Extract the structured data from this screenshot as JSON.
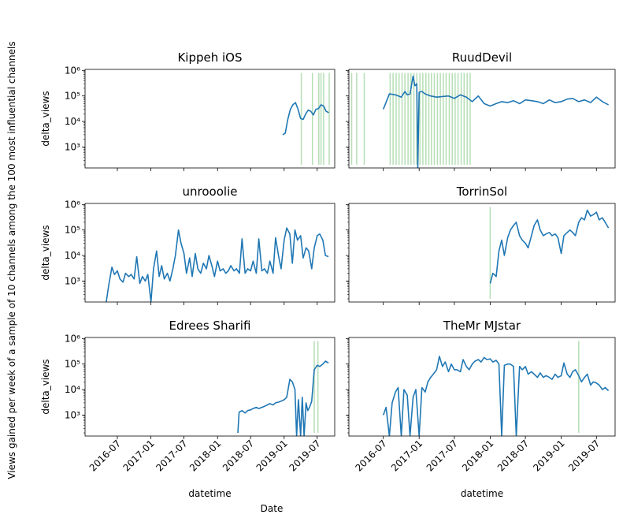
{
  "figure": {
    "ylabel": "Views gained per week of a sample of 10 channels among the 100 most influential channels",
    "xlabel": "Date"
  },
  "colors": {
    "line": "#1f77b4",
    "event": "#2ca02c"
  },
  "shared": {
    "type": "line",
    "ylog": true,
    "ylim": [
      150,
      1100000
    ],
    "xlim": [
      "2016-01-06",
      "2019-10-05"
    ],
    "xticks": [
      "2016-07-01",
      "2017-01-01",
      "2017-07-01",
      "2018-01-01",
      "2018-07-01",
      "2019-01-01",
      "2019-07-01"
    ],
    "xtick_labels": [
      "2016-07",
      "2017-01",
      "2017-07",
      "2018-01",
      "2018-07",
      "2019-01",
      "2019-07"
    ],
    "yticks": [
      1000,
      10000,
      100000,
      1000000
    ],
    "ytick_labels": [
      "10³",
      "10⁴",
      "10⁵",
      "10⁶"
    ],
    "subplot_ylabel": "delta_views",
    "subplot_xlabel": "datetime"
  },
  "chart_data": [
    {
      "type": "line",
      "title": "Kippeh iOS",
      "ylabel": "delta_views",
      "xlabel": "",
      "x": [
        "2018-12-24",
        "2019-01-07",
        "2019-01-21",
        "2019-02-04",
        "2019-02-18",
        "2019-03-04",
        "2019-03-18",
        "2019-04-01",
        "2019-04-15",
        "2019-04-29",
        "2019-05-13",
        "2019-05-27",
        "2019-06-10",
        "2019-06-24",
        "2019-07-08",
        "2019-07-22",
        "2019-08-05",
        "2019-08-19",
        "2019-09-02"
      ],
      "y": [
        3000,
        3500,
        12000,
        30000,
        45000,
        55000,
        30000,
        13000,
        12000,
        20000,
        28000,
        25000,
        18000,
        30000,
        32000,
        45000,
        40000,
        25000,
        22000
      ],
      "events": [
        "2019-04-05",
        "2019-06-05",
        "2019-07-10",
        "2019-07-22",
        "2019-08-05",
        "2019-09-05"
      ]
    },
    {
      "type": "line",
      "title": "RuudDevil",
      "ylabel": "",
      "xlabel": "",
      "x": [
        "2016-07-01",
        "2016-08-01",
        "2016-09-01",
        "2016-10-01",
        "2016-10-20",
        "2016-11-01",
        "2016-11-15",
        "2016-12-01",
        "2016-12-10",
        "2016-12-20",
        "2016-12-25",
        "2017-01-01",
        "2017-01-15",
        "2017-02-01",
        "2017-03-01",
        "2017-04-01",
        "2017-05-01",
        "2017-06-01",
        "2017-07-01",
        "2017-08-01",
        "2017-09-01",
        "2017-10-01",
        "2017-11-01",
        "2017-12-01",
        "2018-01-01",
        "2018-02-01",
        "2018-03-01",
        "2018-04-01",
        "2018-05-01",
        "2018-06-01",
        "2018-07-01",
        "2018-08-01",
        "2018-09-01",
        "2018-10-01",
        "2018-11-01",
        "2018-12-01",
        "2019-01-01",
        "2019-02-01",
        "2019-03-01",
        "2019-04-01",
        "2019-05-01",
        "2019-06-01",
        "2019-07-01",
        "2019-08-01",
        "2019-09-01"
      ],
      "y": [
        30000,
        120000,
        110000,
        90000,
        150000,
        110000,
        120000,
        600000,
        250000,
        300000,
        150,
        140000,
        150000,
        120000,
        100000,
        90000,
        95000,
        100000,
        80000,
        110000,
        90000,
        60000,
        100000,
        50000,
        40000,
        50000,
        60000,
        55000,
        65000,
        50000,
        70000,
        65000,
        60000,
        50000,
        70000,
        55000,
        60000,
        75000,
        80000,
        60000,
        70000,
        55000,
        90000,
        60000,
        45000
      ],
      "events": [
        "2016-01-20",
        "2016-02-15",
        "2016-03-25",
        "2016-08-05",
        "2016-08-20",
        "2016-09-05",
        "2016-09-20",
        "2016-10-05",
        "2016-10-20",
        "2016-11-05",
        "2016-11-20",
        "2016-12-05",
        "2016-12-20",
        "2017-01-05",
        "2017-01-20",
        "2017-02-05",
        "2017-02-20",
        "2017-03-05",
        "2017-03-20",
        "2017-04-05",
        "2017-04-20",
        "2017-05-05",
        "2017-05-20",
        "2017-06-05",
        "2017-06-20",
        "2017-07-05",
        "2017-07-20",
        "2017-08-05",
        "2017-08-20",
        "2017-09-05",
        "2017-09-20"
      ]
    },
    {
      "type": "line",
      "title": "unrooolie",
      "ylabel": "delta_views",
      "xlabel": "",
      "x": [
        "2016-05-01",
        "2016-05-15",
        "2016-06-01",
        "2016-06-15",
        "2016-07-01",
        "2016-07-15",
        "2016-08-01",
        "2016-08-15",
        "2016-09-01",
        "2016-09-15",
        "2016-10-01",
        "2016-10-15",
        "2016-11-01",
        "2016-11-15",
        "2016-12-01",
        "2016-12-15",
        "2017-01-01",
        "2017-01-15",
        "2017-02-01",
        "2017-02-15",
        "2017-03-01",
        "2017-03-15",
        "2017-04-01",
        "2017-04-15",
        "2017-05-01",
        "2017-05-15",
        "2017-06-01",
        "2017-06-15",
        "2017-07-01",
        "2017-07-15",
        "2017-08-01",
        "2017-08-15",
        "2017-09-01",
        "2017-09-15",
        "2017-10-01",
        "2017-10-15",
        "2017-11-01",
        "2017-11-15",
        "2017-12-01",
        "2017-12-15",
        "2018-01-01",
        "2018-01-15",
        "2018-02-01",
        "2018-02-15",
        "2018-03-01",
        "2018-03-15",
        "2018-04-01",
        "2018-04-15",
        "2018-05-01",
        "2018-05-15",
        "2018-06-01",
        "2018-06-15",
        "2018-07-01",
        "2018-07-15",
        "2018-08-01",
        "2018-08-15",
        "2018-09-01",
        "2018-09-15",
        "2018-10-01",
        "2018-10-15",
        "2018-11-01",
        "2018-11-15",
        "2018-12-01",
        "2018-12-15",
        "2019-01-01",
        "2019-01-15",
        "2019-02-01",
        "2019-02-15",
        "2019-03-01",
        "2019-03-15",
        "2019-04-01",
        "2019-04-15",
        "2019-05-01",
        "2019-05-15",
        "2019-06-01",
        "2019-06-15",
        "2019-07-01",
        "2019-07-15",
        "2019-08-01",
        "2019-08-15",
        "2019-09-01"
      ],
      "y": [
        150,
        700,
        3500,
        1800,
        2500,
        1200,
        900,
        2000,
        1500,
        1800,
        1200,
        9000,
        800,
        1500,
        1000,
        1800,
        150,
        3000,
        15000,
        1500,
        4000,
        1200,
        2000,
        1000,
        3000,
        10000,
        100000,
        30000,
        12000,
        2000,
        8000,
        1500,
        12000,
        3000,
        2000,
        5000,
        3000,
        10000,
        4000,
        1500,
        6000,
        2500,
        3000,
        2000,
        2500,
        4000,
        2500,
        3000,
        2000,
        45000,
        2000,
        3000,
        2500,
        6000,
        2000,
        45000,
        2500,
        3000,
        2000,
        6000,
        2000,
        50000,
        10000,
        3000,
        40000,
        120000,
        70000,
        5000,
        100000,
        40000,
        60000,
        8000,
        20000,
        15000,
        3000,
        20000,
        60000,
        70000,
        40000,
        10000,
        9000
      ],
      "events": []
    },
    {
      "type": "line",
      "title": "TorrinSol",
      "ylabel": "",
      "xlabel": "",
      "x": [
        "2018-01-01",
        "2018-01-15",
        "2018-02-01",
        "2018-02-15",
        "2018-03-01",
        "2018-03-15",
        "2018-04-01",
        "2018-04-15",
        "2018-05-01",
        "2018-05-15",
        "2018-06-01",
        "2018-06-15",
        "2018-07-01",
        "2018-07-15",
        "2018-08-01",
        "2018-08-15",
        "2018-09-01",
        "2018-09-15",
        "2018-10-01",
        "2018-10-15",
        "2018-11-01",
        "2018-11-15",
        "2018-12-01",
        "2018-12-15",
        "2019-01-01",
        "2019-01-15",
        "2019-02-01",
        "2019-02-15",
        "2019-03-01",
        "2019-03-15",
        "2019-04-01",
        "2019-04-15",
        "2019-05-01",
        "2019-05-15",
        "2019-06-01",
        "2019-06-15",
        "2019-07-01",
        "2019-07-15",
        "2019-08-01",
        "2019-08-15",
        "2019-09-01"
      ],
      "y": [
        800,
        2000,
        1500,
        15000,
        40000,
        10000,
        50000,
        100000,
        150000,
        200000,
        60000,
        40000,
        30000,
        20000,
        60000,
        150000,
        250000,
        100000,
        60000,
        70000,
        80000,
        60000,
        70000,
        50000,
        12000,
        60000,
        80000,
        100000,
        80000,
        60000,
        200000,
        300000,
        250000,
        600000,
        350000,
        400000,
        500000,
        250000,
        300000,
        200000,
        120000
      ],
      "events": [
        "2018-01-01"
      ]
    },
    {
      "type": "line",
      "title": "Edrees Sharifi",
      "ylabel": "delta_views",
      "xlabel": "",
      "x": [
        "2018-04-22",
        "2018-04-29",
        "2018-05-15",
        "2018-06-01",
        "2018-06-15",
        "2018-07-01",
        "2018-07-15",
        "2018-08-01",
        "2018-08-15",
        "2018-09-01",
        "2018-09-15",
        "2018-10-01",
        "2018-10-15",
        "2018-11-01",
        "2018-11-15",
        "2018-12-01",
        "2018-12-15",
        "2019-01-01",
        "2019-01-15",
        "2019-02-01",
        "2019-02-15",
        "2019-03-01",
        "2019-03-10",
        "2019-03-20",
        "2019-04-01",
        "2019-04-10",
        "2019-04-20",
        "2019-05-01",
        "2019-05-10",
        "2019-05-20",
        "2019-06-01",
        "2019-06-15",
        "2019-07-01",
        "2019-07-15",
        "2019-08-01",
        "2019-08-15",
        "2019-09-01"
      ],
      "y": [
        200,
        1300,
        1500,
        1200,
        1500,
        1600,
        1800,
        2000,
        1800,
        2000,
        2200,
        2500,
        2800,
        2500,
        3000,
        3200,
        3500,
        4000,
        5000,
        25000,
        20000,
        10000,
        150,
        4000,
        150,
        5000,
        150,
        3000,
        1500,
        2000,
        3500,
        60000,
        90000,
        80000,
        100000,
        130000,
        110000
      ],
      "events": [
        "2019-06-15",
        "2019-07-05"
      ]
    },
    {
      "type": "line",
      "title": "TheMr MJstar",
      "ylabel": "",
      "xlabel": "datetime",
      "x": [
        "2016-07-01",
        "2016-07-15",
        "2016-08-01",
        "2016-08-15",
        "2016-09-01",
        "2016-09-15",
        "2016-10-01",
        "2016-10-15",
        "2016-11-01",
        "2016-11-15",
        "2016-12-01",
        "2016-12-15",
        "2017-01-01",
        "2017-01-15",
        "2017-02-01",
        "2017-02-15",
        "2017-03-01",
        "2017-03-15",
        "2017-04-01",
        "2017-04-15",
        "2017-05-01",
        "2017-05-15",
        "2017-06-01",
        "2017-06-15",
        "2017-07-01",
        "2017-07-15",
        "2017-08-01",
        "2017-08-15",
        "2017-09-01",
        "2017-09-15",
        "2017-10-01",
        "2017-10-15",
        "2017-11-01",
        "2017-11-15",
        "2017-12-01",
        "2017-12-15",
        "2018-01-01",
        "2018-01-15",
        "2018-02-01",
        "2018-02-15",
        "2018-03-01",
        "2018-03-15",
        "2018-04-01",
        "2018-04-15",
        "2018-05-01",
        "2018-05-15",
        "2018-06-01",
        "2018-06-15",
        "2018-07-01",
        "2018-07-15",
        "2018-08-01",
        "2018-08-15",
        "2018-09-01",
        "2018-09-15",
        "2018-10-01",
        "2018-10-15",
        "2018-11-01",
        "2018-11-15",
        "2018-12-01",
        "2018-12-15",
        "2019-01-01",
        "2019-01-15",
        "2019-02-01",
        "2019-02-15",
        "2019-03-01",
        "2019-03-15",
        "2019-04-01",
        "2019-04-15",
        "2019-05-01",
        "2019-05-15",
        "2019-06-01",
        "2019-06-15",
        "2019-07-01",
        "2019-07-15",
        "2019-08-01",
        "2019-08-15",
        "2019-09-01"
      ],
      "y": [
        1000,
        2000,
        150,
        3000,
        8000,
        12000,
        150,
        10000,
        6000,
        150,
        5000,
        10000,
        150,
        12000,
        8000,
        20000,
        30000,
        40000,
        60000,
        200000,
        80000,
        120000,
        50000,
        100000,
        60000,
        60000,
        50000,
        150000,
        80000,
        60000,
        100000,
        130000,
        150000,
        120000,
        180000,
        150000,
        160000,
        120000,
        140000,
        100000,
        150,
        90000,
        100000,
        100000,
        80000,
        150,
        80000,
        60000,
        80000,
        40000,
        50000,
        40000,
        30000,
        45000,
        30000,
        35000,
        30000,
        25000,
        40000,
        30000,
        35000,
        110000,
        40000,
        30000,
        50000,
        60000,
        35000,
        20000,
        30000,
        40000,
        15000,
        20000,
        18000,
        15000,
        10000,
        12000,
        9000
      ],
      "events": [
        "2019-04-01"
      ]
    }
  ]
}
